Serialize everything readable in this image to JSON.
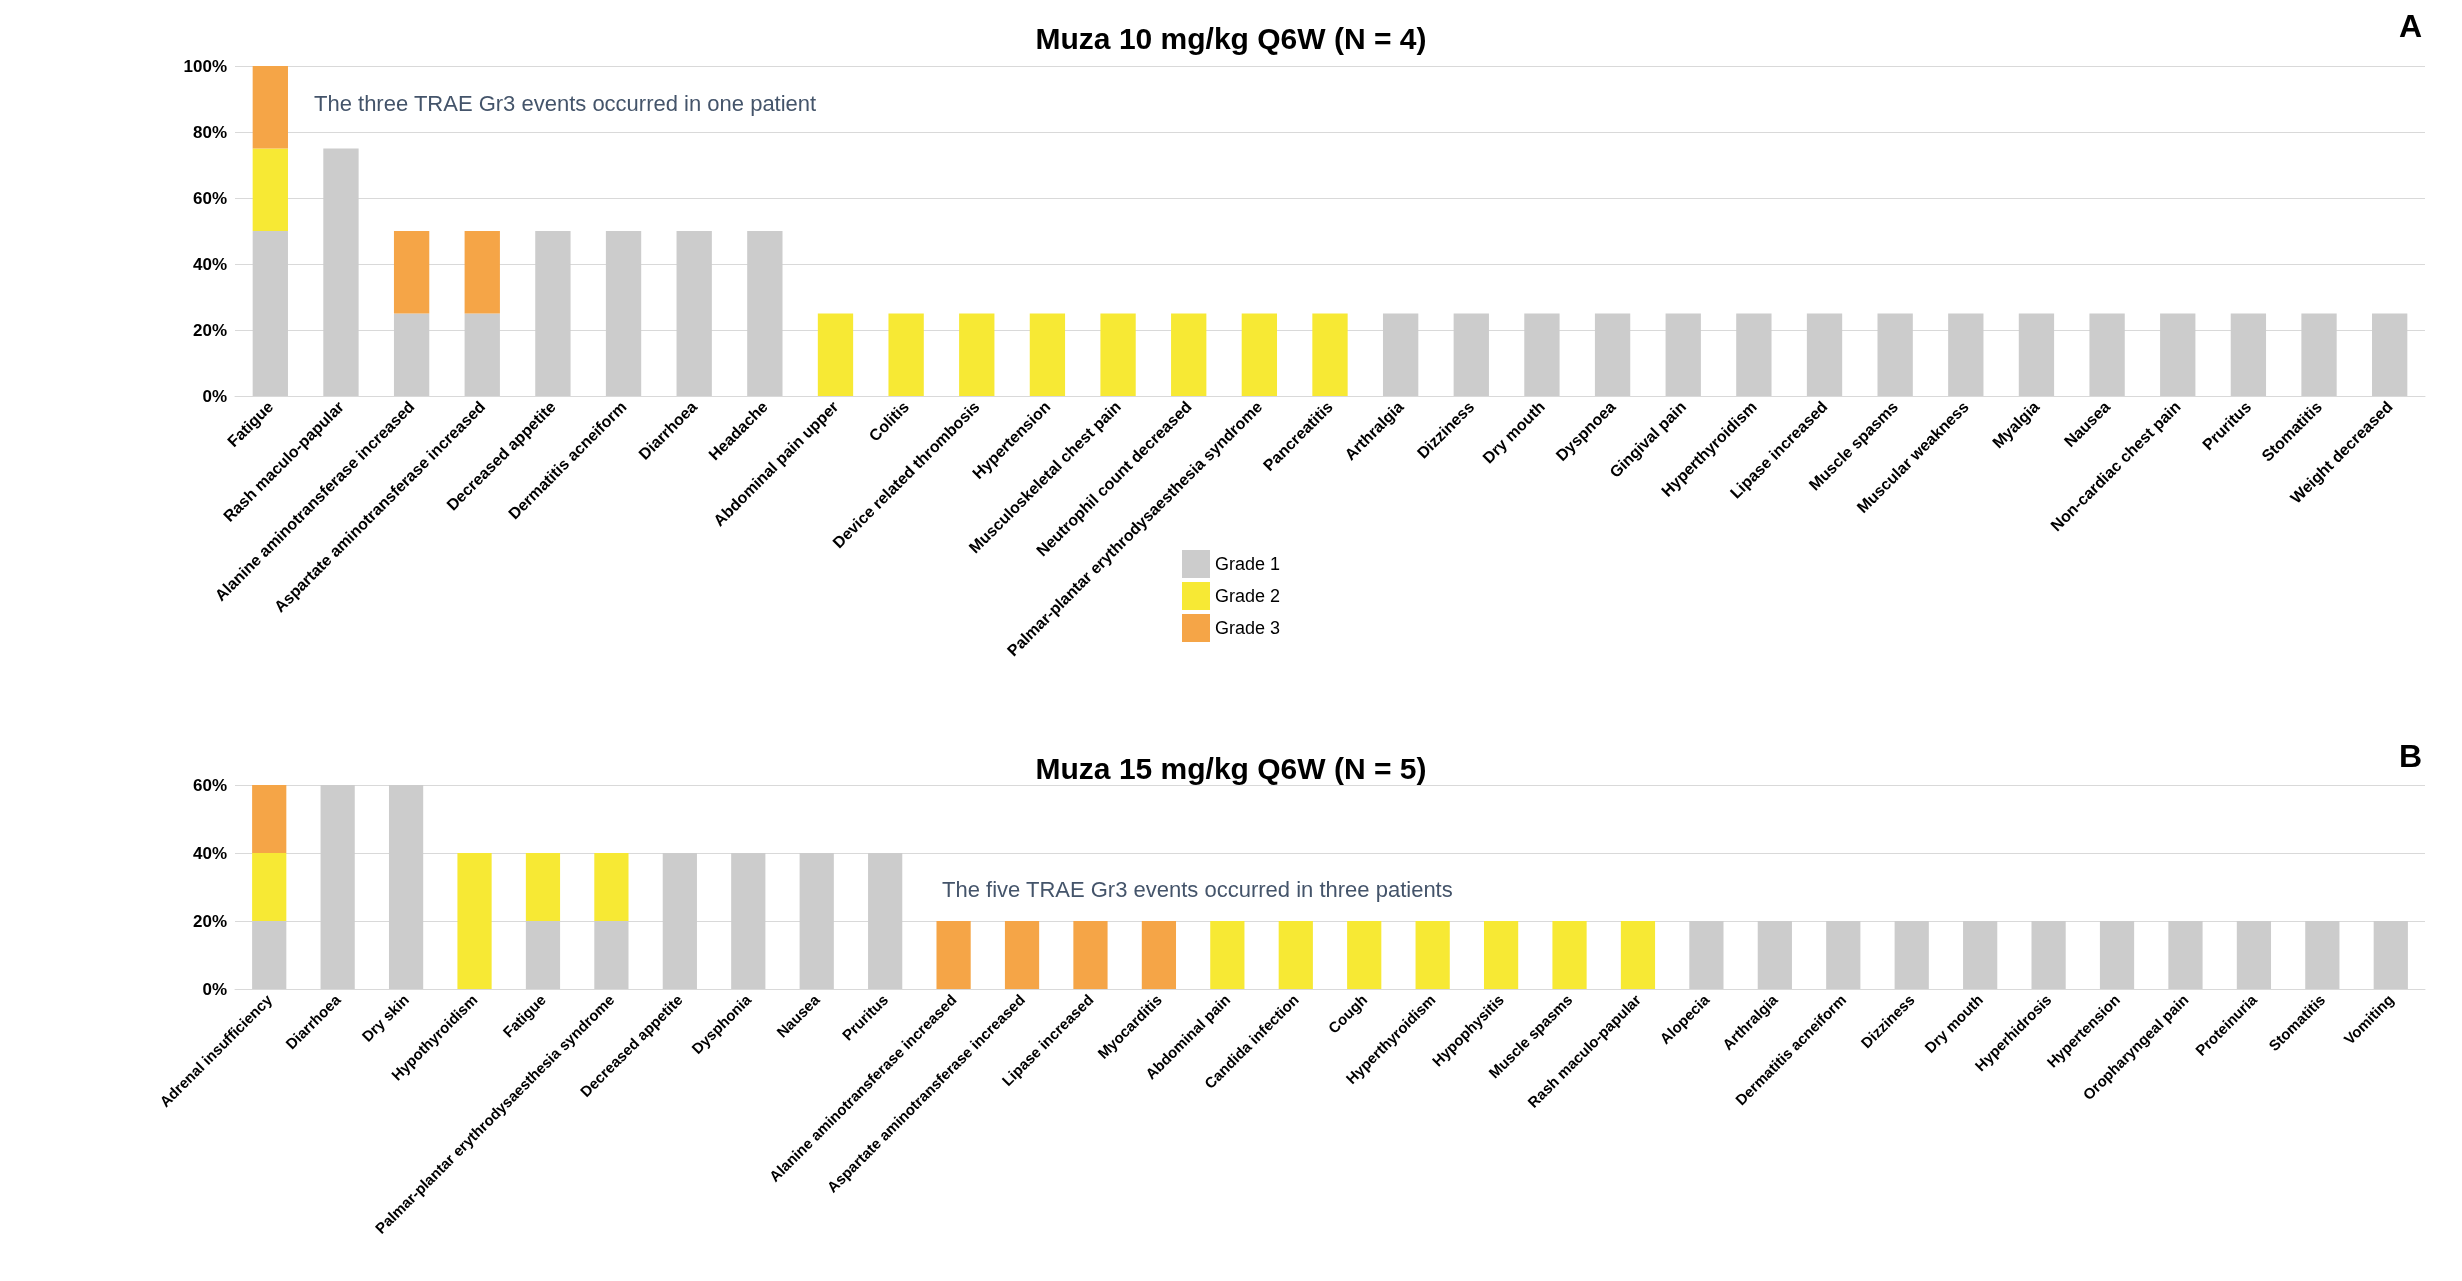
{
  "chart_data": [
    {
      "type": "bar",
      "title": "Muza 10 mg/kg Q6W (N = 4)",
      "stacked": true,
      "grid": "y",
      "legend": "bottom",
      "categories": [
        "Fatigue",
        "Rash maculo-papular",
        "Alanine aminotransferase increased",
        "Aspartate aminotransferase increased",
        "Decreased appetite",
        "Dermatitis acneiform",
        "Diarrhoea",
        "Headache",
        "Abdominal pain upper",
        "Colitis",
        "Device related thrombosis",
        "Hypertension",
        "Musculoskeletal chest pain",
        "Neutrophil count decreased",
        "Palmar-plantar erythrodysaesthesia syndrome",
        "Pancreatitis",
        "Arthralgia",
        "Dizziness",
        "Dry mouth",
        "Dyspnoea",
        "Gingival pain",
        "Hyperthyroidism",
        "Lipase increased",
        "Muscle spasms",
        "Muscular weakness",
        "Myalgia",
        "Nausea",
        "Non-cardiac chest pain",
        "Pruritus",
        "Stomatitis",
        "Weight decreased"
      ],
      "series": [
        {
          "name": "Grade 1",
          "color": "#cccccc",
          "values": [
            50,
            75,
            25,
            25,
            50,
            50,
            50,
            50,
            0,
            0,
            0,
            0,
            0,
            0,
            0,
            0,
            25,
            25,
            25,
            25,
            25,
            25,
            25,
            25,
            25,
            25,
            25,
            25,
            25,
            25,
            25
          ]
        },
        {
          "name": "Grade 2",
          "color": "#f7e934",
          "values": [
            25,
            0,
            0,
            0,
            0,
            0,
            0,
            0,
            25,
            25,
            25,
            25,
            25,
            25,
            25,
            25,
            0,
            0,
            0,
            0,
            0,
            0,
            0,
            0,
            0,
            0,
            0,
            0,
            0,
            0,
            0
          ]
        },
        {
          "name": "Grade 3",
          "color": "#f5a547",
          "values": [
            25,
            0,
            25,
            25,
            0,
            0,
            0,
            0,
            0,
            0,
            0,
            0,
            0,
            0,
            0,
            0,
            0,
            0,
            0,
            0,
            0,
            0,
            0,
            0,
            0,
            0,
            0,
            0,
            0,
            0,
            0
          ]
        }
      ],
      "ylim": [
        0,
        100
      ],
      "yticks": [
        {
          "value": 0,
          "label": "0%"
        },
        {
          "value": 20,
          "label": "20%"
        },
        {
          "value": 40,
          "label": "40%"
        },
        {
          "value": 60,
          "label": "60%"
        },
        {
          "value": 80,
          "label": "80%"
        },
        {
          "value": 100,
          "label": "100%"
        }
      ],
      "annotations": [
        "The three TRAE Gr3 events occurred in one patient",
        "A"
      ]
    },
    {
      "type": "bar",
      "title": "Muza 15 mg/kg Q6W (N = 5)",
      "stacked": true,
      "grid": "y",
      "categories": [
        "Adrenal insufficiency",
        "Diarrhoea",
        "Dry skin",
        "Hypothyroidism",
        "Fatigue",
        "Palmar-plantar erythrodysaesthesia syndrome",
        "Decreased appetite",
        "Dysphonia",
        "Nausea",
        "Pruritus",
        "Alanine aminotransferase increased",
        "Aspartate aminotransferase increased",
        "Lipase increased",
        "Myocarditis",
        "Abdominal pain",
        "Candida infection",
        "Cough",
        "Hyperthyroidism",
        "Hypophysitis",
        "Muscle spasms",
        "Rash maculo-papular",
        "Alopecia",
        "Arthralgia",
        "Dermatitis acneiform",
        "Dizziness",
        "Dry mouth",
        "Hyperhidrosis",
        "Hypertension",
        "Oropharyngeal pain",
        "Proteinuria",
        "Stomatitis",
        "Vomiting"
      ],
      "series": [
        {
          "color": "#cccccc",
          "values": [
            20,
            60,
            60,
            0,
            20,
            20,
            40,
            40,
            40,
            40,
            0,
            0,
            0,
            0,
            0,
            0,
            0,
            0,
            0,
            0,
            0,
            20,
            20,
            20,
            20,
            20,
            20,
            20,
            20,
            20,
            20,
            20
          ]
        },
        {
          "color": "#f7e934",
          "values": [
            20,
            0,
            0,
            40,
            20,
            20,
            0,
            0,
            0,
            0,
            0,
            0,
            0,
            0,
            20,
            20,
            20,
            20,
            20,
            20,
            20,
            0,
            0,
            0,
            0,
            0,
            0,
            0,
            0,
            0,
            0,
            0
          ]
        },
        {
          "color": "#f5a547",
          "values": [
            20,
            0,
            0,
            0,
            0,
            0,
            0,
            0,
            0,
            0,
            20,
            20,
            20,
            20,
            0,
            0,
            0,
            0,
            0,
            0,
            0,
            0,
            0,
            0,
            0,
            0,
            0,
            0,
            0,
            0,
            0,
            0
          ]
        }
      ],
      "ylim": [
        0,
        60
      ],
      "yticks": [
        {
          "value": 0,
          "label": "0%"
        },
        {
          "value": 20,
          "label": "20%"
        },
        {
          "value": 40,
          "label": "40%"
        },
        {
          "value": 60,
          "label": "60%"
        }
      ],
      "annotations": [
        "The five TRAE Gr3 events occurred in three patients",
        "B"
      ]
    }
  ]
}
